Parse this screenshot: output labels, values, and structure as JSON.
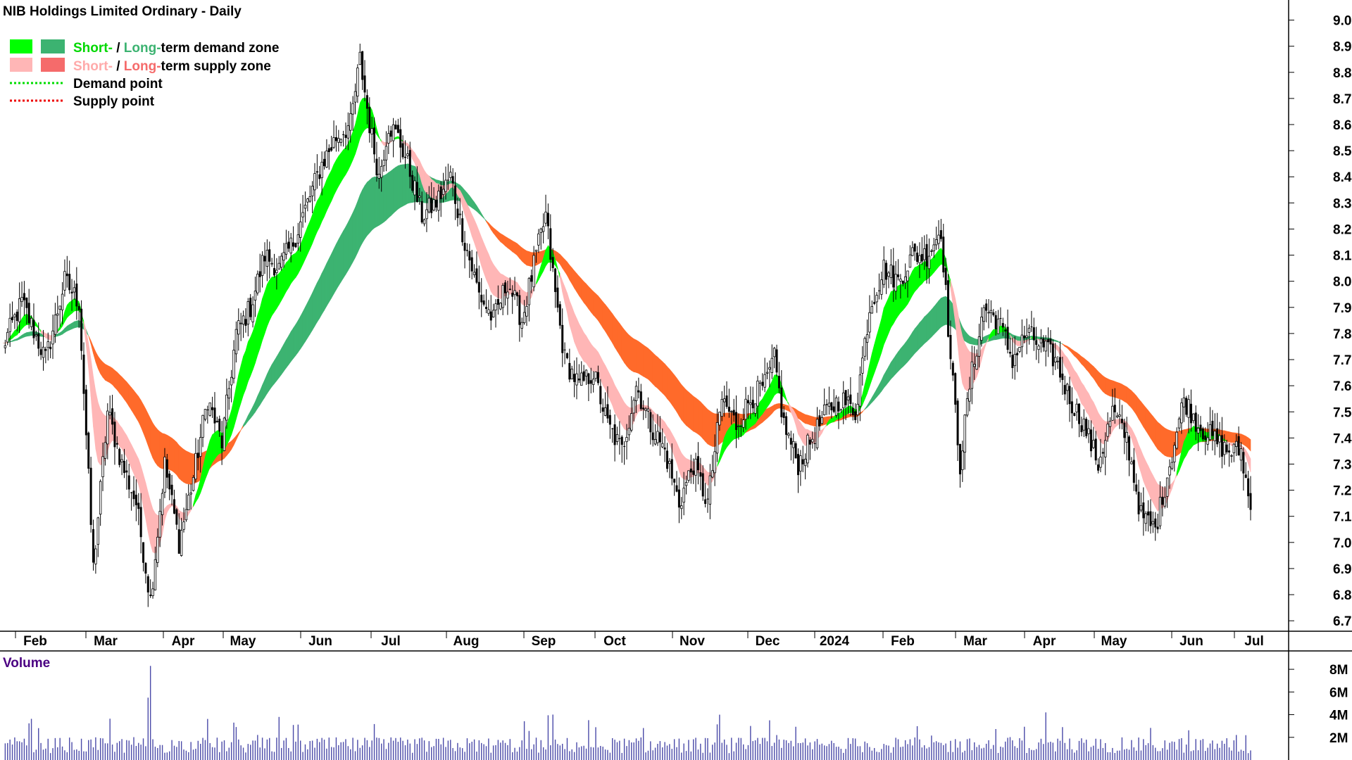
{
  "chart_data": {
    "type": "candlestick",
    "title": "NIB Holdings Limited Ordinary - Daily",
    "ylim": [
      6.66,
      9.05
    ],
    "y_ticks": [
      "9.00",
      "8.90",
      "8.80",
      "8.70",
      "8.60",
      "8.50",
      "8.40",
      "8.30",
      "8.20",
      "8.10",
      "8.00",
      "7.90",
      "7.80",
      "7.70",
      "7.60",
      "7.50",
      "7.40",
      "7.30",
      "7.20",
      "7.10",
      "7.00",
      "6.90",
      "6.80",
      "6.70"
    ],
    "x_months": [
      "Feb",
      "Mar",
      "Apr",
      "May",
      "Jun",
      "Jul",
      "Aug",
      "Sep",
      "Oct",
      "Nov",
      "Dec",
      "2024",
      "Feb",
      "Mar",
      "Apr",
      "May",
      "Jun",
      "Jul"
    ],
    "legend": {
      "demand_zone": {
        "short": "Short-",
        "sep": " / ",
        "long": "Long-",
        "rest": "term demand zone"
      },
      "supply_zone": {
        "short": "Short-",
        "sep": " / ",
        "long": "Long-",
        "rest": "term supply zone"
      },
      "demand_point": "Demand point",
      "supply_point": "Supply point"
    },
    "volume": {
      "label": "Volume",
      "ylim": [
        0,
        9
      ],
      "y_ticks": [
        "8M",
        "6M",
        "4M",
        "2M"
      ],
      "unit": "M"
    },
    "anchors": [
      {
        "d": 0,
        "v": 7.75
      },
      {
        "d": 8,
        "v": 7.92
      },
      {
        "d": 18,
        "v": 7.7
      },
      {
        "d": 26,
        "v": 8.0
      },
      {
        "d": 32,
        "v": 7.92
      },
      {
        "d": 38,
        "v": 6.9
      },
      {
        "d": 44,
        "v": 7.5
      },
      {
        "d": 50,
        "v": 7.3
      },
      {
        "d": 56,
        "v": 7.15
      },
      {
        "d": 62,
        "v": 6.78
      },
      {
        "d": 68,
        "v": 7.3
      },
      {
        "d": 74,
        "v": 7.0
      },
      {
        "d": 80,
        "v": 7.25
      },
      {
        "d": 86,
        "v": 7.55
      },
      {
        "d": 92,
        "v": 7.38
      },
      {
        "d": 98,
        "v": 7.8
      },
      {
        "d": 104,
        "v": 7.9
      },
      {
        "d": 110,
        "v": 8.1
      },
      {
        "d": 116,
        "v": 8.05
      },
      {
        "d": 122,
        "v": 8.15
      },
      {
        "d": 128,
        "v": 8.3
      },
      {
        "d": 134,
        "v": 8.45
      },
      {
        "d": 140,
        "v": 8.55
      },
      {
        "d": 146,
        "v": 8.6
      },
      {
        "d": 150,
        "v": 8.85
      },
      {
        "d": 154,
        "v": 8.6
      },
      {
        "d": 158,
        "v": 8.4
      },
      {
        "d": 162,
        "v": 8.6
      },
      {
        "d": 166,
        "v": 8.55
      },
      {
        "d": 170,
        "v": 8.45
      },
      {
        "d": 176,
        "v": 8.25
      },
      {
        "d": 182,
        "v": 8.3
      },
      {
        "d": 188,
        "v": 8.4
      },
      {
        "d": 194,
        "v": 8.15
      },
      {
        "d": 200,
        "v": 7.95
      },
      {
        "d": 206,
        "v": 7.85
      },
      {
        "d": 212,
        "v": 8.0
      },
      {
        "d": 218,
        "v": 7.85
      },
      {
        "d": 224,
        "v": 8.1
      },
      {
        "d": 228,
        "v": 8.25
      },
      {
        "d": 232,
        "v": 7.95
      },
      {
        "d": 236,
        "v": 7.7
      },
      {
        "d": 242,
        "v": 7.6
      },
      {
        "d": 248,
        "v": 7.65
      },
      {
        "d": 254,
        "v": 7.45
      },
      {
        "d": 260,
        "v": 7.35
      },
      {
        "d": 266,
        "v": 7.6
      },
      {
        "d": 272,
        "v": 7.45
      },
      {
        "d": 278,
        "v": 7.35
      },
      {
        "d": 284,
        "v": 7.15
      },
      {
        "d": 290,
        "v": 7.3
      },
      {
        "d": 296,
        "v": 7.15
      },
      {
        "d": 302,
        "v": 7.55
      },
      {
        "d": 308,
        "v": 7.45
      },
      {
        "d": 314,
        "v": 7.55
      },
      {
        "d": 320,
        "v": 7.6
      },
      {
        "d": 324,
        "v": 7.7
      },
      {
        "d": 328,
        "v": 7.45
      },
      {
        "d": 334,
        "v": 7.3
      },
      {
        "d": 340,
        "v": 7.4
      },
      {
        "d": 346,
        "v": 7.5
      },
      {
        "d": 352,
        "v": 7.55
      },
      {
        "d": 358,
        "v": 7.5
      },
      {
        "d": 364,
        "v": 7.9
      },
      {
        "d": 370,
        "v": 8.05
      },
      {
        "d": 376,
        "v": 8.0
      },
      {
        "d": 382,
        "v": 8.1
      },
      {
        "d": 388,
        "v": 8.1
      },
      {
        "d": 394,
        "v": 8.2
      },
      {
        "d": 398,
        "v": 7.7
      },
      {
        "d": 402,
        "v": 7.3
      },
      {
        "d": 406,
        "v": 7.6
      },
      {
        "d": 412,
        "v": 7.9
      },
      {
        "d": 418,
        "v": 7.85
      },
      {
        "d": 424,
        "v": 7.7
      },
      {
        "d": 430,
        "v": 7.8
      },
      {
        "d": 436,
        "v": 7.75
      },
      {
        "d": 442,
        "v": 7.7
      },
      {
        "d": 448,
        "v": 7.55
      },
      {
        "d": 454,
        "v": 7.45
      },
      {
        "d": 460,
        "v": 7.3
      },
      {
        "d": 466,
        "v": 7.5
      },
      {
        "d": 472,
        "v": 7.4
      },
      {
        "d": 478,
        "v": 7.1
      },
      {
        "d": 484,
        "v": 7.05
      },
      {
        "d": 490,
        "v": 7.3
      },
      {
        "d": 496,
        "v": 7.55
      },
      {
        "d": 502,
        "v": 7.45
      },
      {
        "d": 508,
        "v": 7.4
      },
      {
        "d": 514,
        "v": 7.35
      },
      {
        "d": 520,
        "v": 7.35
      },
      {
        "d": 524,
        "v": 7.12
      }
    ],
    "total_days": 524,
    "colors": {
      "short_demand": "#00ff00",
      "long_demand": "#3cb371",
      "short_supply": "#ffb6b6",
      "long_supply": "#ff6a2a",
      "long_supply_recent": "#f56b6b",
      "candle": "#000000",
      "volume": "#4a4aa8",
      "axis": "#000000"
    }
  }
}
